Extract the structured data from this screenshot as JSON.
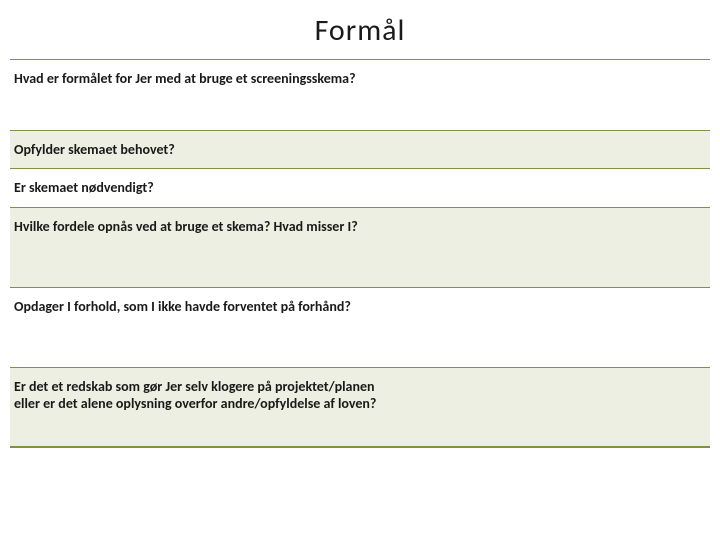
{
  "title": "Formål",
  "colors": {
    "rule": "#7a9440",
    "shade_bg": "#edefe2",
    "text": "#1a1a1a",
    "background": "#ffffff"
  },
  "typography": {
    "title_fontsize": 30,
    "title_weight": 400,
    "cell_fontsize": 14,
    "cell_weight": 600,
    "font_family": "Calibri"
  },
  "table": {
    "type": "table",
    "columns": [
      {
        "key": "question",
        "width_pct": 54
      },
      {
        "key": "answer",
        "width_pct": 46
      }
    ],
    "rows": [
      {
        "question": "Hvad er formålet for Jer med at bruge et screeningsskema?",
        "answer": "",
        "shaded": false
      },
      {
        "question": "Opfylder skemaet behovet?",
        "answer": "",
        "shaded": true
      },
      {
        "question": "Er skemaet nødvendigt?",
        "answer": "",
        "shaded": false
      },
      {
        "question": "Hvilke fordele opnås ved at bruge et skema? Hvad misser I?",
        "answer": "",
        "shaded": true
      },
      {
        "question": "Opdager I forhold, som I ikke havde forventet på forhånd?",
        "answer": "",
        "shaded": false
      },
      {
        "question": "Er det et redskab som gør Jer selv klogere på projektet/planen eller er det alene oplysning overfor andre/opfyldelse af loven?",
        "answer": "",
        "shaded": true
      }
    ]
  }
}
